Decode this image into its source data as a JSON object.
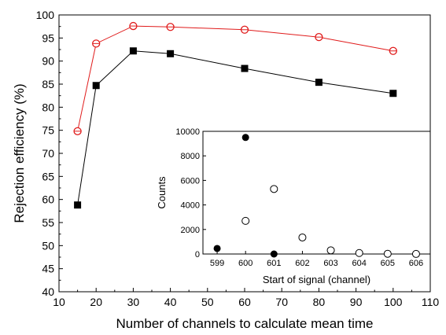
{
  "chart_data": [
    {
      "type": "line",
      "xlabel": "Number of channels to calculate mean time",
      "ylabel": "Rejection efficiency (%)",
      "xlim": [
        10,
        110
      ],
      "ylim": [
        40,
        100
      ],
      "xticks": [
        10,
        20,
        30,
        40,
        50,
        60,
        70,
        80,
        90,
        100,
        110
      ],
      "yticks": [
        40,
        45,
        50,
        55,
        60,
        65,
        70,
        75,
        80,
        85,
        90,
        95,
        100
      ],
      "grid": false,
      "x": [
        15,
        20,
        30,
        40,
        60,
        80,
        100
      ],
      "series": [
        {
          "color": "#e01b1b",
          "marker": "open-circle",
          "values": [
            74.8,
            93.8,
            97.6,
            97.4,
            96.8,
            95.2,
            92.2
          ]
        },
        {
          "color": "#000000",
          "marker": "filled-square",
          "values": [
            58.8,
            84.7,
            92.2,
            91.6,
            88.4,
            85.4,
            83.0
          ]
        }
      ]
    },
    {
      "type": "scatter",
      "xlabel": "Start of signal (channel)",
      "ylabel": "Counts",
      "xlim": [
        598.5,
        606.5
      ],
      "ylim": [
        0,
        10000
      ],
      "xticks": [
        599,
        600,
        601,
        602,
        603,
        604,
        605,
        606
      ],
      "yticks": [
        0,
        2000,
        4000,
        6000,
        8000,
        10000
      ],
      "grid": false,
      "series": [
        {
          "marker": "filled-circle",
          "color": "#000000",
          "points": [
            [
              599,
              450
            ],
            [
              600,
              9500
            ],
            [
              601,
              0
            ]
          ]
        },
        {
          "marker": "open-circle",
          "color": "#000000",
          "points": [
            [
              600,
              2700
            ],
            [
              601,
              5300
            ],
            [
              602,
              1350
            ],
            [
              603,
              300
            ],
            [
              604,
              80
            ],
            [
              605,
              20
            ],
            [
              606,
              5
            ]
          ]
        }
      ]
    }
  ]
}
